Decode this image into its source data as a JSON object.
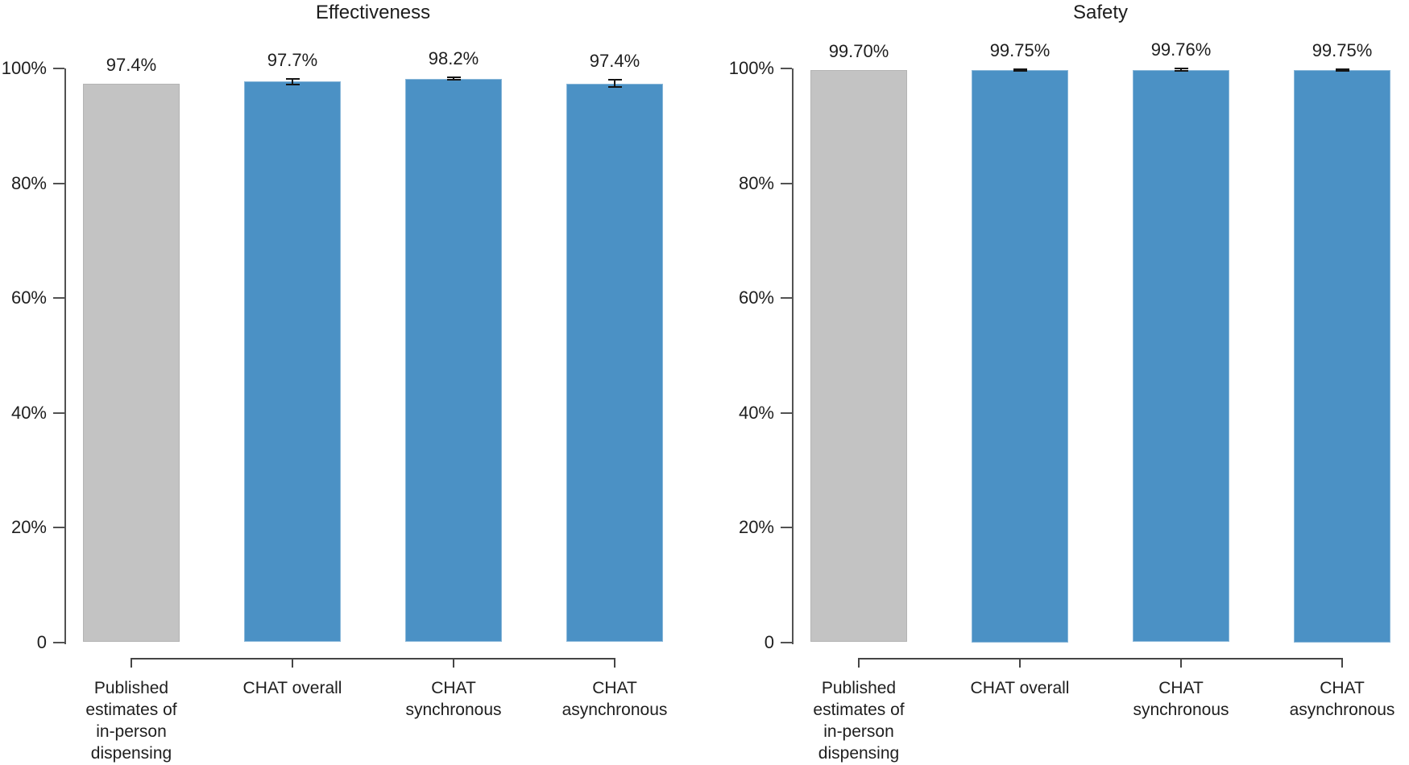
{
  "figure": {
    "colors": {
      "bar_blue": "#4b91c5",
      "bar_gray": "#c3c3c3",
      "axis": "#525252",
      "text": "#1e1e1e",
      "error_bar": "#141414"
    }
  },
  "chart_data": [
    {
      "type": "bar",
      "title": "Effectiveness",
      "categories": [
        "Published estimates of in-person dispensing",
        "CHAT overall",
        "CHAT synchronous",
        "CHAT asynchronous"
      ],
      "category_lines": [
        [
          "Published",
          "estimates of",
          "in-person",
          "dispensing"
        ],
        [
          "CHAT overall"
        ],
        [
          "CHAT",
          "synchronous"
        ],
        [
          "CHAT",
          "asynchronous"
        ]
      ],
      "values": [
        97.4,
        97.7,
        98.2,
        97.4
      ],
      "value_labels": [
        "97.4%",
        "97.7%",
        "98.2%",
        "97.4%"
      ],
      "errors": [
        null,
        0.5,
        0.2,
        0.65
      ],
      "bar_colors": [
        "gray",
        "blue",
        "blue",
        "blue"
      ],
      "ytick_labels": [
        "0",
        "20%",
        "40%",
        "60%",
        "80%",
        "100%"
      ],
      "ylim": [
        0,
        100
      ],
      "grid": false,
      "legend": false
    },
    {
      "type": "bar",
      "title": "Safety",
      "categories": [
        "Published estimates of in-person dispensing",
        "CHAT overall",
        "CHAT synchronous",
        "CHAT asynchronous"
      ],
      "category_lines": [
        [
          "Published",
          "estimates of",
          "in-person",
          "dispensing"
        ],
        [
          "CHAT overall"
        ],
        [
          "CHAT",
          "synchronous"
        ],
        [
          "CHAT",
          "asynchronous"
        ]
      ],
      "values": [
        99.7,
        99.75,
        99.76,
        99.75
      ],
      "value_labels": [
        "99.70%",
        "99.75%",
        "99.76%",
        "99.75%"
      ],
      "errors": [
        null,
        0.08,
        0.25,
        0.08
      ],
      "bar_colors": [
        "gray",
        "blue",
        "blue",
        "blue"
      ],
      "ytick_labels": [
        "0",
        "20%",
        "40%",
        "60%",
        "80%",
        "100%"
      ],
      "ylim": [
        0,
        100
      ],
      "grid": false,
      "legend": false
    }
  ]
}
